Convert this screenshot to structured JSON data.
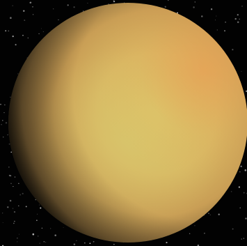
{
  "scene": {
    "subject": "moon",
    "colors": {
      "background": "#020202",
      "surface_lit": "#e0c86a",
      "surface_mid": "#d8ae5c",
      "surface_shadow": "#4a3a20",
      "rim_highlight": "#e9a85a"
    }
  }
}
